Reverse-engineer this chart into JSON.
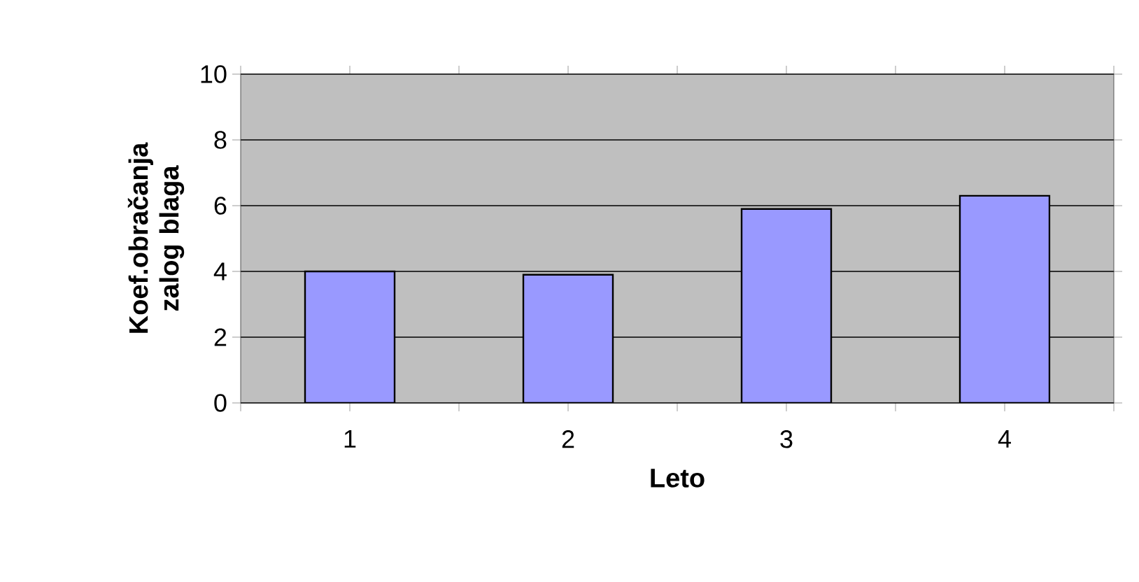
{
  "chart_data": {
    "type": "bar",
    "xlabel": "Leto",
    "ylabel": "Koef.obračanja zalog blaga",
    "categories": [
      "1",
      "2",
      "3",
      "4"
    ],
    "values": [
      4.0,
      3.9,
      5.9,
      6.3
    ],
    "color": "#9999ff",
    "ylim": [
      0,
      10
    ],
    "yticks": [
      0,
      2,
      4,
      6,
      8,
      10
    ],
    "grid": "y"
  }
}
